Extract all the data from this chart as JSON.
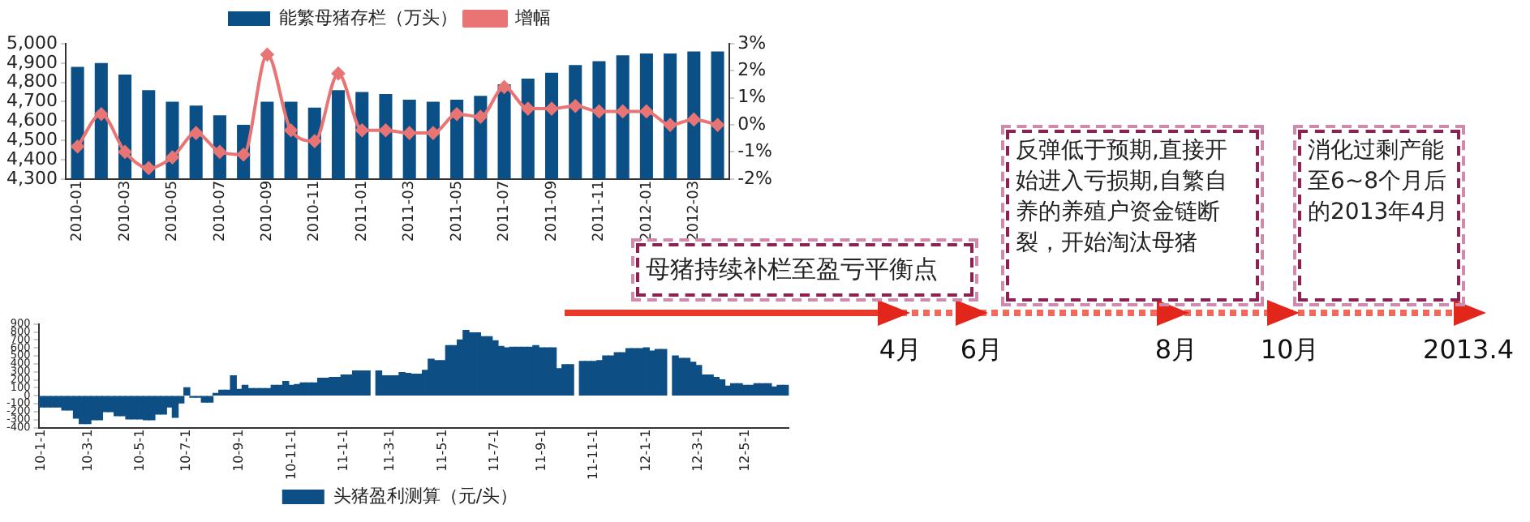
{
  "chart_data": [
    {
      "type": "bar",
      "categories": [
        "2010-01",
        null,
        "2010-03",
        null,
        "2010-05",
        null,
        "2010-07",
        null,
        "2010-09",
        null,
        "2010-11",
        null,
        "2011-01",
        null,
        "2011-03",
        null,
        "2011-05",
        null,
        "2011-07",
        null,
        "2011-09",
        null,
        "2011-11",
        null,
        "2012-01",
        null,
        "2012-03",
        null
      ],
      "series": [
        {
          "name": "能繁母猪存栏（万头）",
          "color": "#0b4f87",
          "values": [
            4880,
            4900,
            4840,
            4760,
            4700,
            4680,
            4630,
            4580,
            4700,
            4700,
            4670,
            4760,
            4750,
            4740,
            4710,
            4700,
            4710,
            4730,
            4790,
            4820,
            4850,
            4890,
            4910,
            4940,
            4950,
            4950,
            4960,
            4960
          ]
        },
        {
          "name": "增幅",
          "type": "line",
          "axis": "y2",
          "color": "#e87474",
          "values": [
            -0.8,
            0.4,
            -1.0,
            -1.6,
            -1.2,
            -0.3,
            -1.0,
            -1.1,
            2.6,
            -0.2,
            -0.6,
            1.9,
            -0.2,
            -0.2,
            -0.3,
            -0.3,
            0.4,
            0.3,
            1.4,
            0.6,
            0.6,
            0.7,
            0.5,
            0.5,
            0.5,
            0.0,
            0.2,
            0.0
          ]
        }
      ],
      "ylim": [
        4300,
        5000
      ],
      "yticks": [
        {
          "value": 4300,
          "label": "4,300"
        },
        {
          "value": 4400,
          "label": "4,400"
        },
        {
          "value": 4500,
          "label": "4,500"
        },
        {
          "value": 4600,
          "label": "4,600"
        },
        {
          "value": 4700,
          "label": "4,700"
        },
        {
          "value": 4800,
          "label": "4,800"
        },
        {
          "value": 4900,
          "label": "4,900"
        },
        {
          "value": 5000,
          "label": "5,000"
        }
      ],
      "y2lim": [
        -2,
        3
      ],
      "y2ticks": [
        {
          "value": -2,
          "label": "-2%"
        },
        {
          "value": -1,
          "label": "-1%"
        },
        {
          "value": 0,
          "label": "0%"
        },
        {
          "value": 1,
          "label": "1%"
        },
        {
          "value": 2,
          "label": "2%"
        },
        {
          "value": 3,
          "label": "3%"
        }
      ],
      "legend": "top",
      "marker": "diamond"
    },
    {
      "type": "bar",
      "categories": [
        "10-1-1",
        null,
        null,
        null,
        null,
        null,
        null,
        null,
        "10-3-1",
        null,
        null,
        null,
        null,
        null,
        null,
        null,
        null,
        "10-5-1",
        null,
        null,
        null,
        null,
        null,
        null,
        null,
        "10-7-1",
        null,
        null,
        null,
        null,
        null,
        null,
        null,
        null,
        "10-9-1",
        null,
        null,
        null,
        null,
        null,
        null,
        null,
        null,
        "10-11-1",
        null,
        null,
        null,
        null,
        null,
        null,
        null,
        null,
        "11-1-1",
        null,
        null,
        null,
        null,
        null,
        null,
        null,
        "11-3-1",
        null,
        null,
        null,
        null,
        null,
        null,
        null,
        null,
        "11-5-1",
        null,
        null,
        null,
        null,
        null,
        null,
        null,
        null,
        "11-7-1",
        null,
        null,
        null,
        null,
        null,
        null,
        null,
        "11-9-1",
        null,
        null,
        null,
        null,
        null,
        null,
        null,
        null,
        "11-11-1",
        null,
        null,
        null,
        null,
        null,
        null,
        null,
        null,
        "12-1-1",
        null,
        null,
        null,
        null,
        null,
        null,
        null,
        null,
        "12-3-1",
        null,
        null,
        null,
        null,
        null,
        null,
        null,
        "12-5-1",
        null,
        null,
        null,
        null,
        null,
        null,
        null
      ],
      "series": [
        {
          "name": "头猪盈利测算（元/头）",
          "color": "#0d4e84",
          "values": [
            -140,
            -140,
            -140,
            -140,
            -180,
            -180,
            -280,
            -350,
            -350,
            -300,
            -300,
            -200,
            -200,
            -250,
            -250,
            -290,
            -290,
            -290,
            -300,
            -300,
            -230,
            -230,
            -140,
            -270,
            -90,
            100,
            -20,
            -20,
            -80,
            -80,
            30,
            70,
            70,
            250,
            80,
            130,
            90,
            90,
            90,
            90,
            130,
            130,
            180,
            130,
            140,
            160,
            160,
            160,
            220,
            220,
            230,
            230,
            260,
            260,
            310,
            310,
            310,
            null,
            310,
            250,
            250,
            250,
            290,
            280,
            270,
            270,
            320,
            460,
            440,
            440,
            630,
            630,
            700,
            820,
            790,
            790,
            740,
            740,
            690,
            620,
            600,
            610,
            610,
            610,
            610,
            630,
            600,
            600,
            600,
            340,
            390,
            390,
            null,
            430,
            430,
            430,
            440,
            500,
            500,
            540,
            540,
            590,
            590,
            590,
            600,
            560,
            580,
            580,
            null,
            500,
            470,
            470,
            420,
            380,
            260,
            260,
            230,
            200,
            120,
            150,
            150,
            130,
            130,
            150,
            150,
            150,
            110,
            130,
            130
          ]
        }
      ],
      "ylim": [
        -400,
        900
      ],
      "yticks": [
        -400,
        -300,
        -200,
        -100,
        0,
        100,
        200,
        300,
        400,
        500,
        600,
        700,
        800,
        900
      ],
      "legend": "bottom"
    },
    {
      "type": "other",
      "annotations": [
        "母猪持续补栏至盈亏平衡点",
        "反弹低于预期,直接开始进入亏损期,自繁自养的养殖户资金链断裂，开始淘汰母猪",
        "消化过剩产能至6~8个月后的2013年4月",
        "4月",
        "6月",
        "8月",
        "10月",
        "2013.4"
      ]
    }
  ]
}
